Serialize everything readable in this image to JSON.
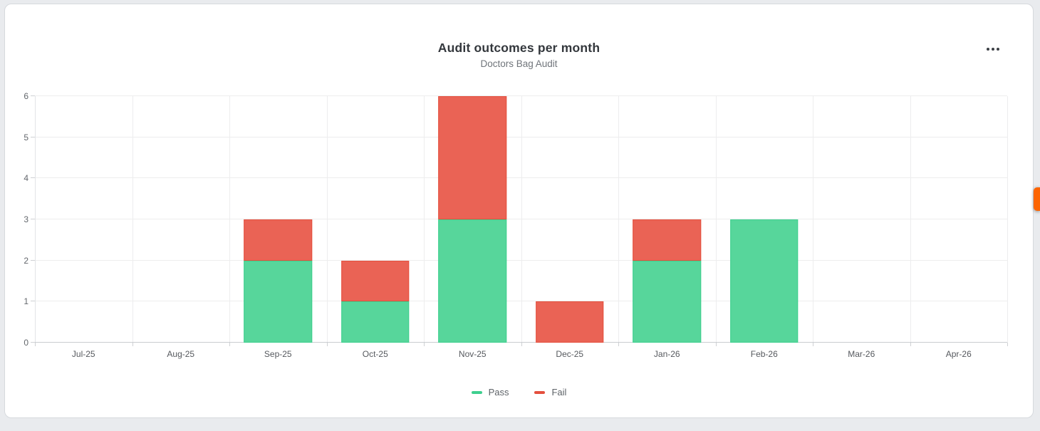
{
  "window": {
    "background_color": "#e9ebee",
    "card_background_color": "#ffffff"
  },
  "header": {
    "title": "Audit outcomes per month",
    "subtitle": "Doctors Bag Audit",
    "menu_icon": "ellipsis-horizontal"
  },
  "side_tab": {
    "color": "#fd6400"
  },
  "chart_data": {
    "type": "bar",
    "stacked": true,
    "title": "Audit outcomes per month",
    "subtitle": "Doctors Bag Audit",
    "categories": [
      "Jul-25",
      "Aug-25",
      "Sep-25",
      "Oct-25",
      "Nov-25",
      "Dec-25",
      "Jan-26",
      "Feb-26",
      "Mar-26",
      "Apr-26"
    ],
    "series": [
      {
        "name": "Pass",
        "color": "#57d69b",
        "border_color": "#3ecf8e",
        "values": [
          0,
          0,
          2,
          1,
          3,
          0,
          2,
          3,
          0,
          0
        ]
      },
      {
        "name": "Fail",
        "color": "#ea6355",
        "border_color": "#e4503e",
        "values": [
          0,
          0,
          1,
          1,
          3,
          1,
          1,
          0,
          0,
          0
        ]
      }
    ],
    "xlabel": "",
    "ylabel": "",
    "ylim": [
      0,
      6
    ],
    "y_ticks": [
      0,
      1,
      2,
      3,
      4,
      5,
      6
    ],
    "grid": true,
    "legend_position": "bottom"
  }
}
